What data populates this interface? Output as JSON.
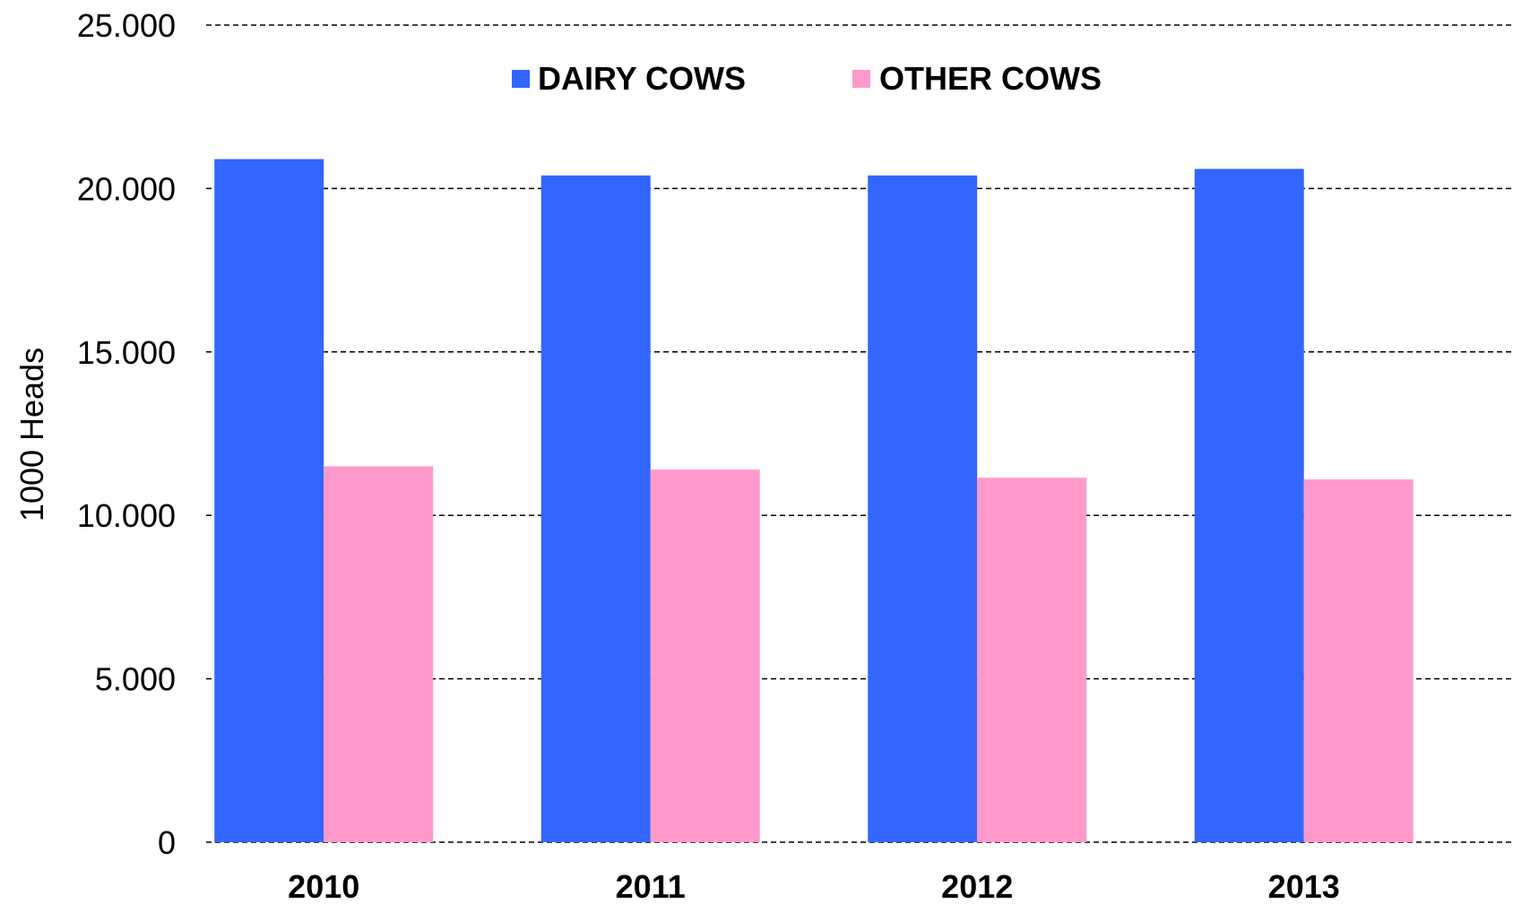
{
  "chart_data": {
    "type": "bar",
    "categories": [
      "2010",
      "2011",
      "2012",
      "2013"
    ],
    "series": [
      {
        "name": "DAIRY COWS",
        "values": [
          20900,
          20400,
          20400,
          20600
        ],
        "color": "#3366FF"
      },
      {
        "name": "OTHER COWS",
        "values": [
          11500,
          11400,
          11150,
          11100
        ],
        "color": "#FF99CC"
      }
    ],
    "title": "",
    "xlabel": "",
    "ylabel": "1000 Heads",
    "ylim": [
      0,
      25000
    ],
    "yticks": [
      "0",
      "5.000",
      "10.000",
      "15.000",
      "20.000",
      "25.000"
    ],
    "ytick_values": [
      0,
      5000,
      10000,
      15000,
      20000,
      25000
    ],
    "grid": true,
    "legend": "top-center"
  }
}
